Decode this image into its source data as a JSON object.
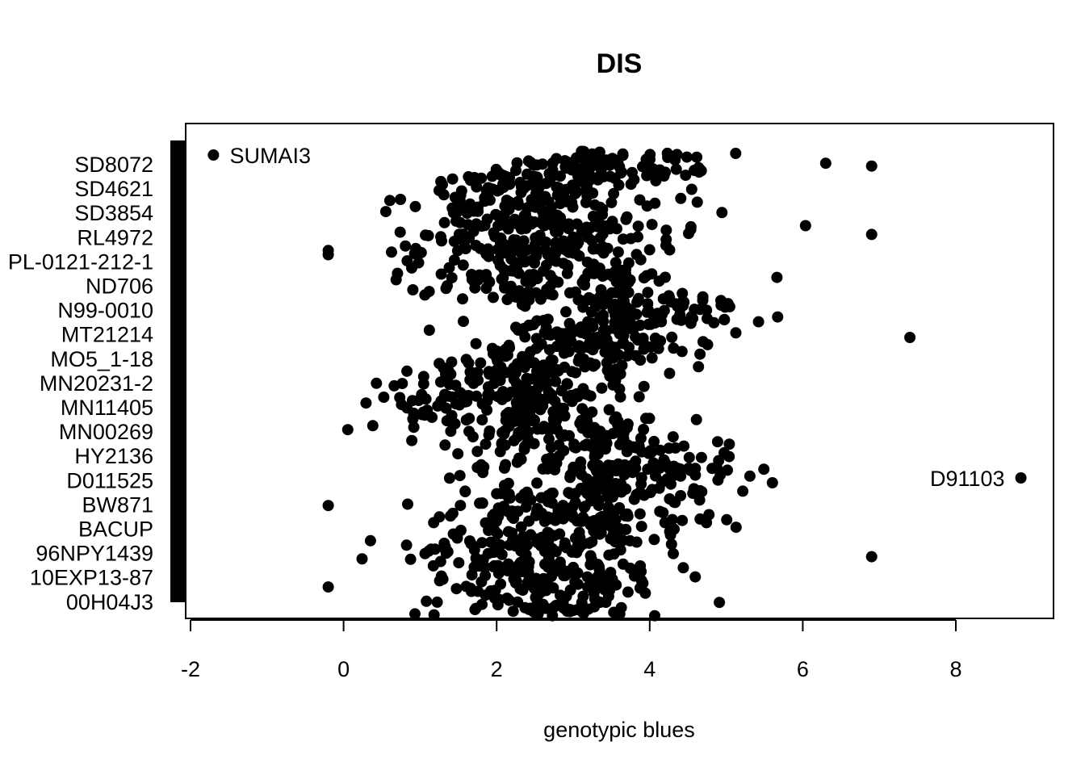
{
  "chart_data": {
    "type": "scatter",
    "title": "DIS",
    "xlabel": "genotypic blues",
    "ylabel": "",
    "xlim": [
      -2.1,
      9.3
    ],
    "x_ticks": [
      -2,
      0,
      2,
      4,
      6,
      8
    ],
    "x_tick_labels": [
      "-2",
      "0",
      "2",
      "4",
      "6",
      "8"
    ],
    "grid": false,
    "legend": "none",
    "point_color": "#000000",
    "y_tick_labels": [
      "SD8072",
      "SD4621",
      "SD3854",
      "RL4972",
      "PL-0121-212-1",
      "ND706",
      "N99-0010",
      "MT21214",
      "MO5_1-18",
      "MN20231-2",
      "MN11405",
      "MN00269",
      "HY2136",
      "D011525",
      "BW871",
      "BACUP",
      "96NPY1439",
      "10EXP13-87",
      "00H04J3"
    ],
    "bands": [
      {
        "center": 3.4,
        "spread": 1.0,
        "n": 90
      },
      {
        "center": 2.6,
        "spread": 0.9,
        "n": 85
      },
      {
        "center": 2.4,
        "spread": 1.0,
        "n": 80
      },
      {
        "center": 2.8,
        "spread": 1.0,
        "n": 85
      },
      {
        "center": 2.5,
        "spread": 1.0,
        "n": 85
      },
      {
        "center": 2.6,
        "spread": 1.1,
        "n": 80
      },
      {
        "center": 3.8,
        "spread": 0.9,
        "n": 85
      },
      {
        "center": 3.3,
        "spread": 0.9,
        "n": 85
      },
      {
        "center": 2.6,
        "spread": 0.9,
        "n": 85
      },
      {
        "center": 2.2,
        "spread": 1.0,
        "n": 85
      },
      {
        "center": 2.1,
        "spread": 1.0,
        "n": 85
      },
      {
        "center": 2.7,
        "spread": 1.1,
        "n": 85
      },
      {
        "center": 3.4,
        "spread": 1.0,
        "n": 85
      },
      {
        "center": 3.6,
        "spread": 1.1,
        "n": 85
      },
      {
        "center": 2.9,
        "spread": 1.0,
        "n": 85
      },
      {
        "center": 2.9,
        "spread": 1.0,
        "n": 85
      },
      {
        "center": 2.4,
        "spread": 0.9,
        "n": 80
      },
      {
        "center": 2.6,
        "spread": 0.9,
        "n": 80
      },
      {
        "center": 2.7,
        "spread": 0.8,
        "n": 70
      }
    ],
    "highlighted_points": [
      {
        "label": "SUMAI3",
        "x": -1.7,
        "label_side": "right"
      },
      {
        "label": "D91103",
        "x": 8.85,
        "label_side": "left"
      }
    ],
    "notable_points": [
      {
        "x": -0.2,
        "band": 14
      },
      {
        "x": 6.9,
        "band": 0
      },
      {
        "x": 6.9,
        "band": 16
      },
      {
        "x": 6.9,
        "band": 3
      },
      {
        "x": 7.4,
        "band": 7
      },
      {
        "x": 6.3,
        "band": 0
      }
    ]
  }
}
